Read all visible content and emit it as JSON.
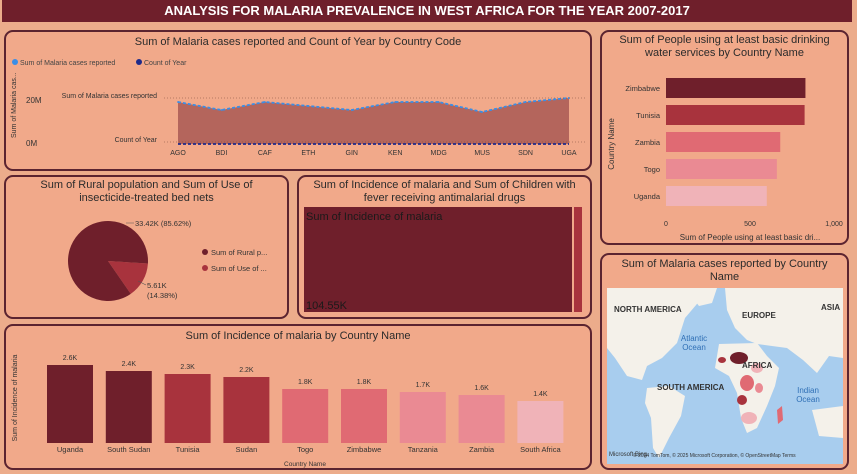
{
  "banner": {
    "title": "ANALYSIS FOR MALARIA PREVALENCE IN WEST AFRICA FOR THE YEAR 2007-2017"
  },
  "colors": {
    "maroon": "#6f1f2b",
    "bg": "#ecac8b",
    "card": "#f1a98a",
    "light_blue": "#3a8ee6",
    "dark_blue": "#1e2a8a"
  },
  "area_chart": {
    "title": "Sum of Malaria cases reported and Count of Year by Country Code",
    "legend": [
      "Sum of Malaria cases reported",
      "Count of Year"
    ],
    "ylabel": "Sum of Malaria cas...",
    "series_label_1": "Sum of Malaria cases reported",
    "series_label_2": "Count of Year",
    "yticks": [
      "20M",
      "0M"
    ],
    "chart_data": {
      "type": "area",
      "categories": [
        "AGO",
        "BDI",
        "CAF",
        "ETH",
        "GIN",
        "KEN",
        "MDG",
        "MUS",
        "SDN",
        "UGA"
      ],
      "series": [
        {
          "name": "Sum of Malaria cases reported",
          "values": [
            21,
            17,
            21,
            19,
            17,
            21,
            21,
            16,
            21,
            23
          ]
        },
        {
          "name": "Count of Year",
          "values": [
            0,
            0,
            0,
            0,
            0,
            0,
            0,
            0,
            0,
            0
          ]
        }
      ],
      "ylim": [
        0,
        30
      ]
    }
  },
  "pie_chart": {
    "title": "Sum of Rural population and Sum of Use of insecticide-treated bed nets",
    "label_big": "33.42K (85.62%)",
    "label_small_1": "5.61K",
    "label_small_2": "(14.38%)",
    "legend": [
      "Sum of Rural p...",
      "Sum of Use of ..."
    ],
    "chart_data": {
      "type": "pie",
      "categories": [
        "Sum of Rural population",
        "Sum of Use of insecticide-treated bed nets"
      ],
      "values": [
        33420,
        5610
      ],
      "colors": [
        "#6f1f2b",
        "#a8333d"
      ]
    }
  },
  "treemap": {
    "title": "Sum of Incidence of malaria and Sum of Children with fever receiving antimalarial drugs",
    "label": "Sum of Incidence of malaria",
    "value": "104.55K"
  },
  "hbar_chart": {
    "title": "Sum of People using at least basic drinking water services by Country Name",
    "ylabel": "Country Name",
    "xlabel": "Sum of People using at least basic dri...",
    "xticks": [
      "0",
      "500",
      "1,000"
    ],
    "chart_data": {
      "type": "bar",
      "categories": [
        "Zimbabwe",
        "Tunisia",
        "Zambia",
        "Togo",
        "Uganda"
      ],
      "values": [
        830,
        825,
        680,
        660,
        600
      ],
      "colors": [
        "#6f1f2b",
        "#a8333d",
        "#e06a73",
        "#ea8a93",
        "#f0b3b8"
      ],
      "xlim": [
        0,
        1000
      ]
    }
  },
  "map": {
    "title": "Sum of Malaria cases reported by Country Name",
    "labels": [
      "NORTH AMERICA",
      "EUROPE",
      "ASIA",
      "Atlantic Ocean",
      "AFRICA",
      "SOUTH AMERICA",
      "Indian Ocean"
    ],
    "attribution": "© 2024 TomTom, © 2025 Microsoft Corporation, © OpenStreetMap Terms",
    "brand": "Microsoft Bing"
  },
  "vbar_chart": {
    "title": "Sum of Incidence of malaria by Country Name",
    "ylabel": "Sum of Incidence of malaria",
    "xlabel": "Country Name",
    "chart_data": {
      "type": "bar",
      "categories": [
        "Uganda",
        "South Sudan",
        "Tunisia",
        "Sudan",
        "Togo",
        "Zimbabwe",
        "Tanzania",
        "Zambia",
        "South Africa"
      ],
      "values": [
        2600,
        2400,
        2300,
        2200,
        1800,
        1800,
        1700,
        1600,
        1400
      ],
      "data_labels": [
        "2.6K",
        "2.4K",
        "2.3K",
        "2.2K",
        "1.8K",
        "1.8K",
        "1.7K",
        "1.6K",
        "1.4K"
      ],
      "colors": [
        "#6f1f2b",
        "#6f1f2b",
        "#a8333d",
        "#a8333d",
        "#e06a73",
        "#e06a73",
        "#ea8a93",
        "#ea8a93",
        "#f0b3b8"
      ]
    }
  }
}
